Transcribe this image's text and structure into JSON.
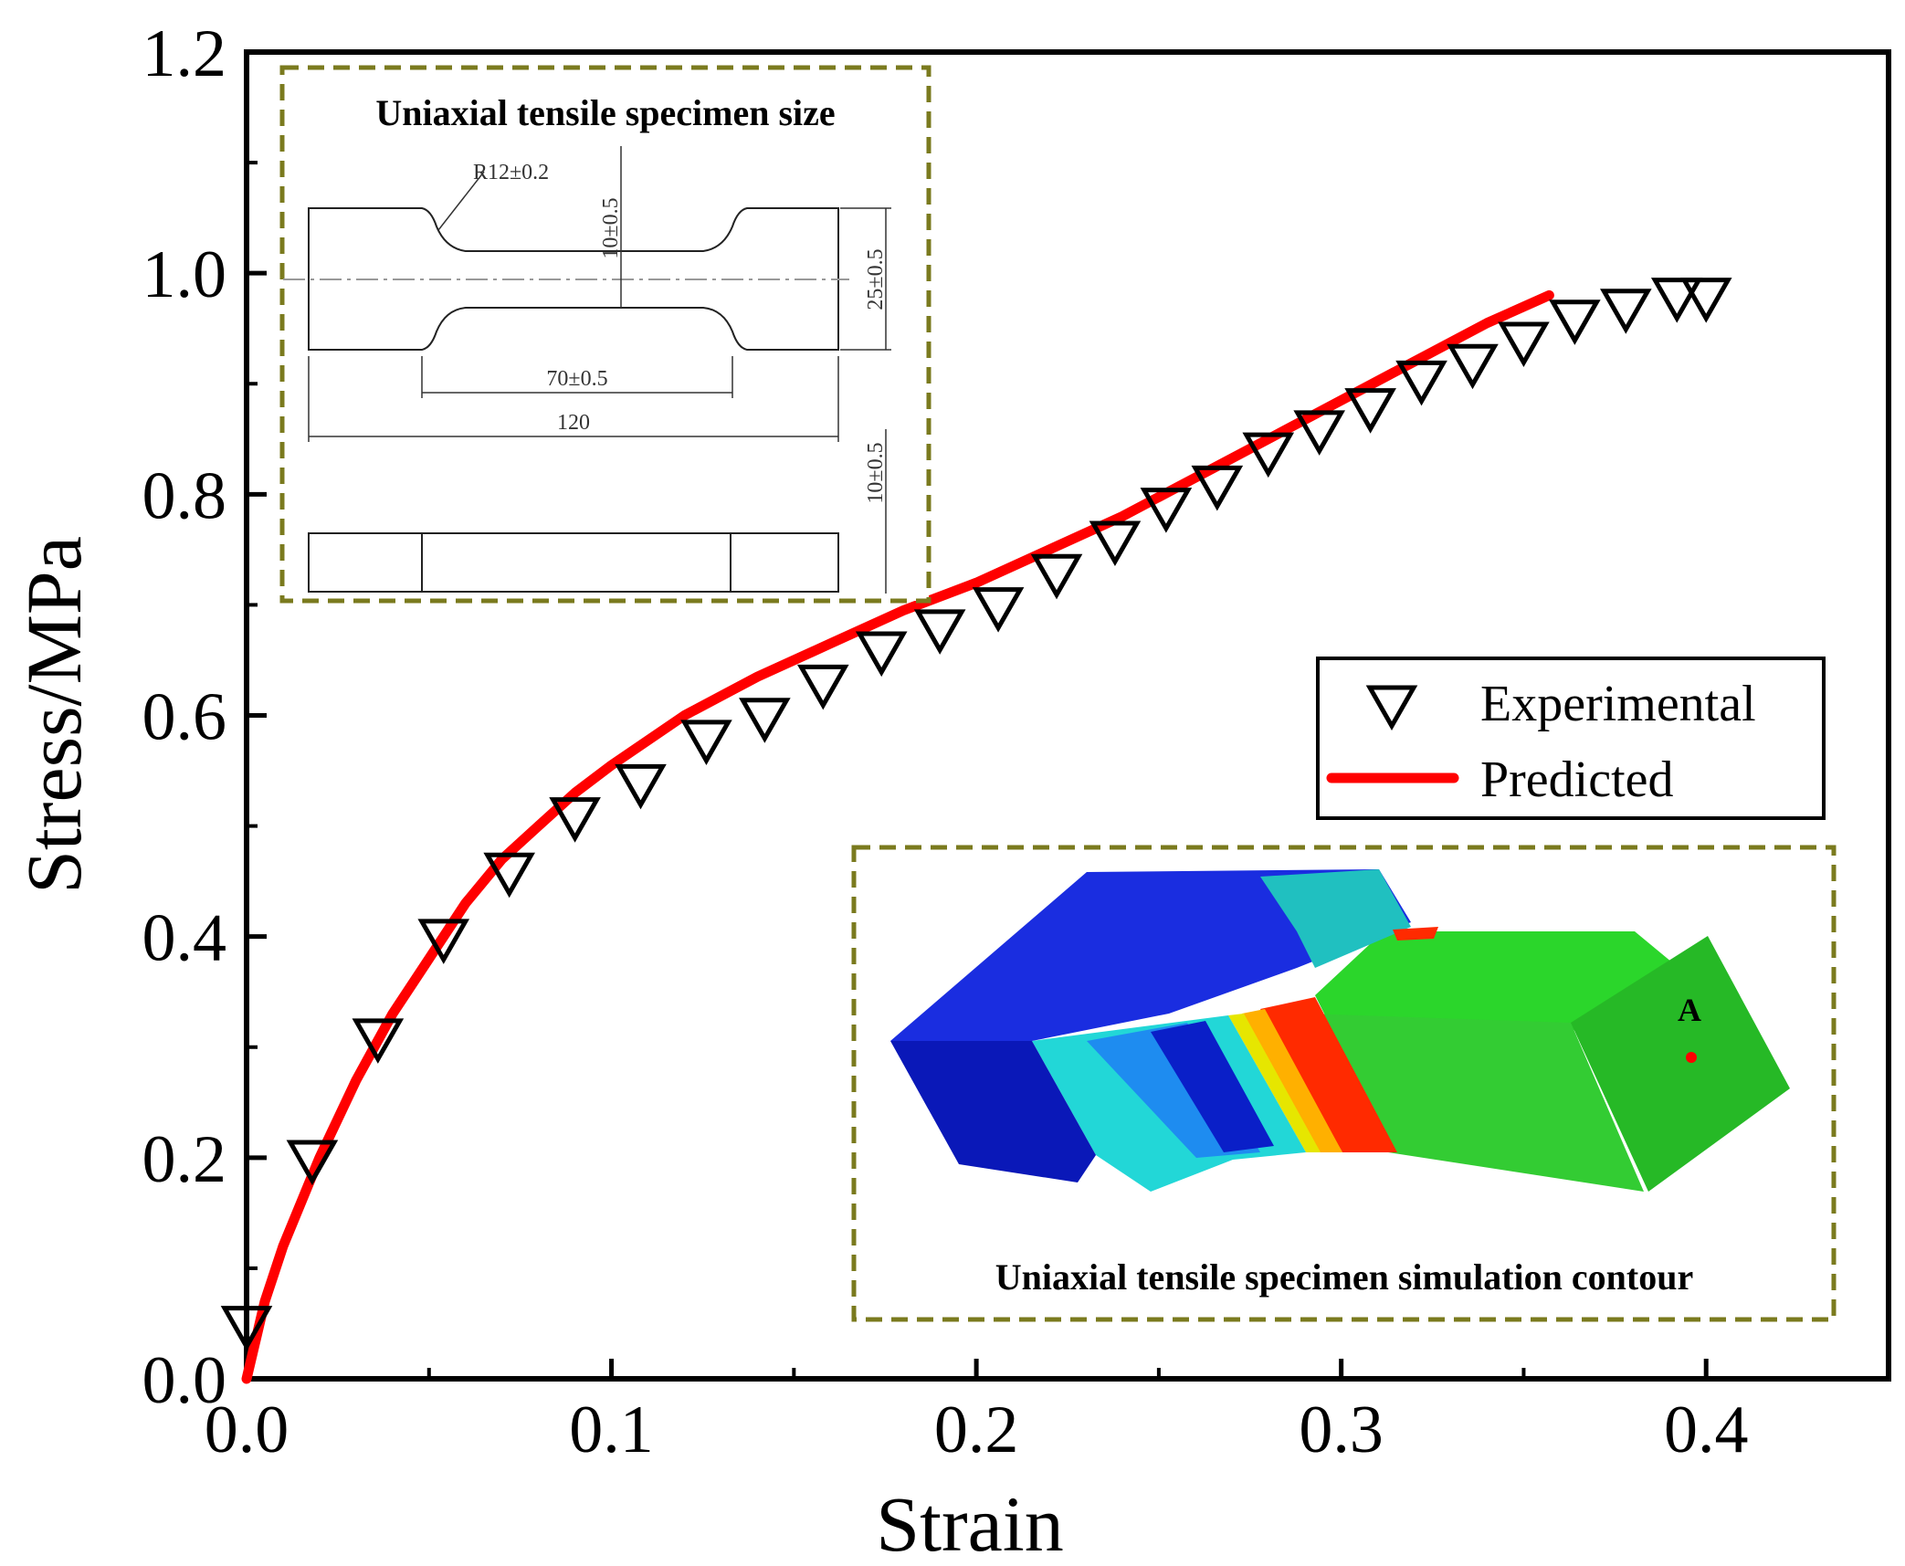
{
  "chart_data": {
    "type": "line",
    "xlabel": "Strain",
    "ylabel": "Stress/MPa",
    "xlim": [
      0.0,
      0.45
    ],
    "ylim": [
      0.0,
      1.2
    ],
    "xticks": [
      0.0,
      0.1,
      0.2,
      0.3,
      0.4
    ],
    "xtick_labels": [
      "0.0",
      "0.1",
      "0.2",
      "0.3",
      "0.4"
    ],
    "yticks": [
      0.0,
      0.2,
      0.4,
      0.6,
      0.8,
      1.0,
      1.2
    ],
    "ytick_labels": [
      "0.0",
      "0.2",
      "0.4",
      "0.6",
      "0.8",
      "1.0",
      "1.2"
    ],
    "legend_position": "right-middle",
    "series": [
      {
        "name": "Experimental",
        "style": "open-down-triangle",
        "color": "#000000",
        "x": [
          0.0,
          0.018,
          0.036,
          0.054,
          0.072,
          0.09,
          0.108,
          0.126,
          0.142,
          0.158,
          0.174,
          0.19,
          0.206,
          0.222,
          0.238,
          0.252,
          0.266,
          0.28,
          0.294,
          0.308,
          0.322,
          0.336,
          0.35,
          0.364,
          0.378,
          0.392,
          0.4
        ],
        "y": [
          0.05,
          0.2,
          0.31,
          0.4,
          0.46,
          0.51,
          0.54,
          0.58,
          0.6,
          0.63,
          0.66,
          0.68,
          0.7,
          0.73,
          0.76,
          0.79,
          0.81,
          0.84,
          0.86,
          0.88,
          0.905,
          0.92,
          0.94,
          0.96,
          0.97,
          0.98,
          0.98
        ]
      },
      {
        "name": "Predicted",
        "style": "solid-line",
        "color": "#ff0000",
        "x": [
          0.0,
          0.005,
          0.01,
          0.02,
          0.03,
          0.04,
          0.05,
          0.06,
          0.07,
          0.08,
          0.09,
          0.1,
          0.12,
          0.14,
          0.16,
          0.18,
          0.2,
          0.22,
          0.24,
          0.26,
          0.28,
          0.3,
          0.32,
          0.34,
          0.357
        ],
        "y": [
          0.0,
          0.07,
          0.12,
          0.2,
          0.27,
          0.33,
          0.38,
          0.43,
          0.47,
          0.5,
          0.53,
          0.555,
          0.6,
          0.635,
          0.665,
          0.695,
          0.72,
          0.75,
          0.78,
          0.815,
          0.85,
          0.885,
          0.92,
          0.955,
          0.98
        ]
      }
    ]
  },
  "legend": {
    "experimental_label": "Experimental",
    "predicted_label": "Predicted"
  },
  "inset_top": {
    "title": "Uniaxial tensile specimen size",
    "dims": {
      "radius": "R12±0.2",
      "neck_width": "10±0.5",
      "total_width": "25±0.5",
      "gauge_length": "70±0.5",
      "total_length": "120",
      "thickness": "10±0.5"
    }
  },
  "inset_bottom": {
    "title": "Uniaxial tensile specimen simulation contour",
    "point_label": "A"
  },
  "colors": {
    "inset_border": "#7a7a1e",
    "predicted": "#ff0000",
    "contour_blue": "#0a1fd0",
    "contour_green": "#22cc22",
    "contour_red": "#ff1a00"
  }
}
